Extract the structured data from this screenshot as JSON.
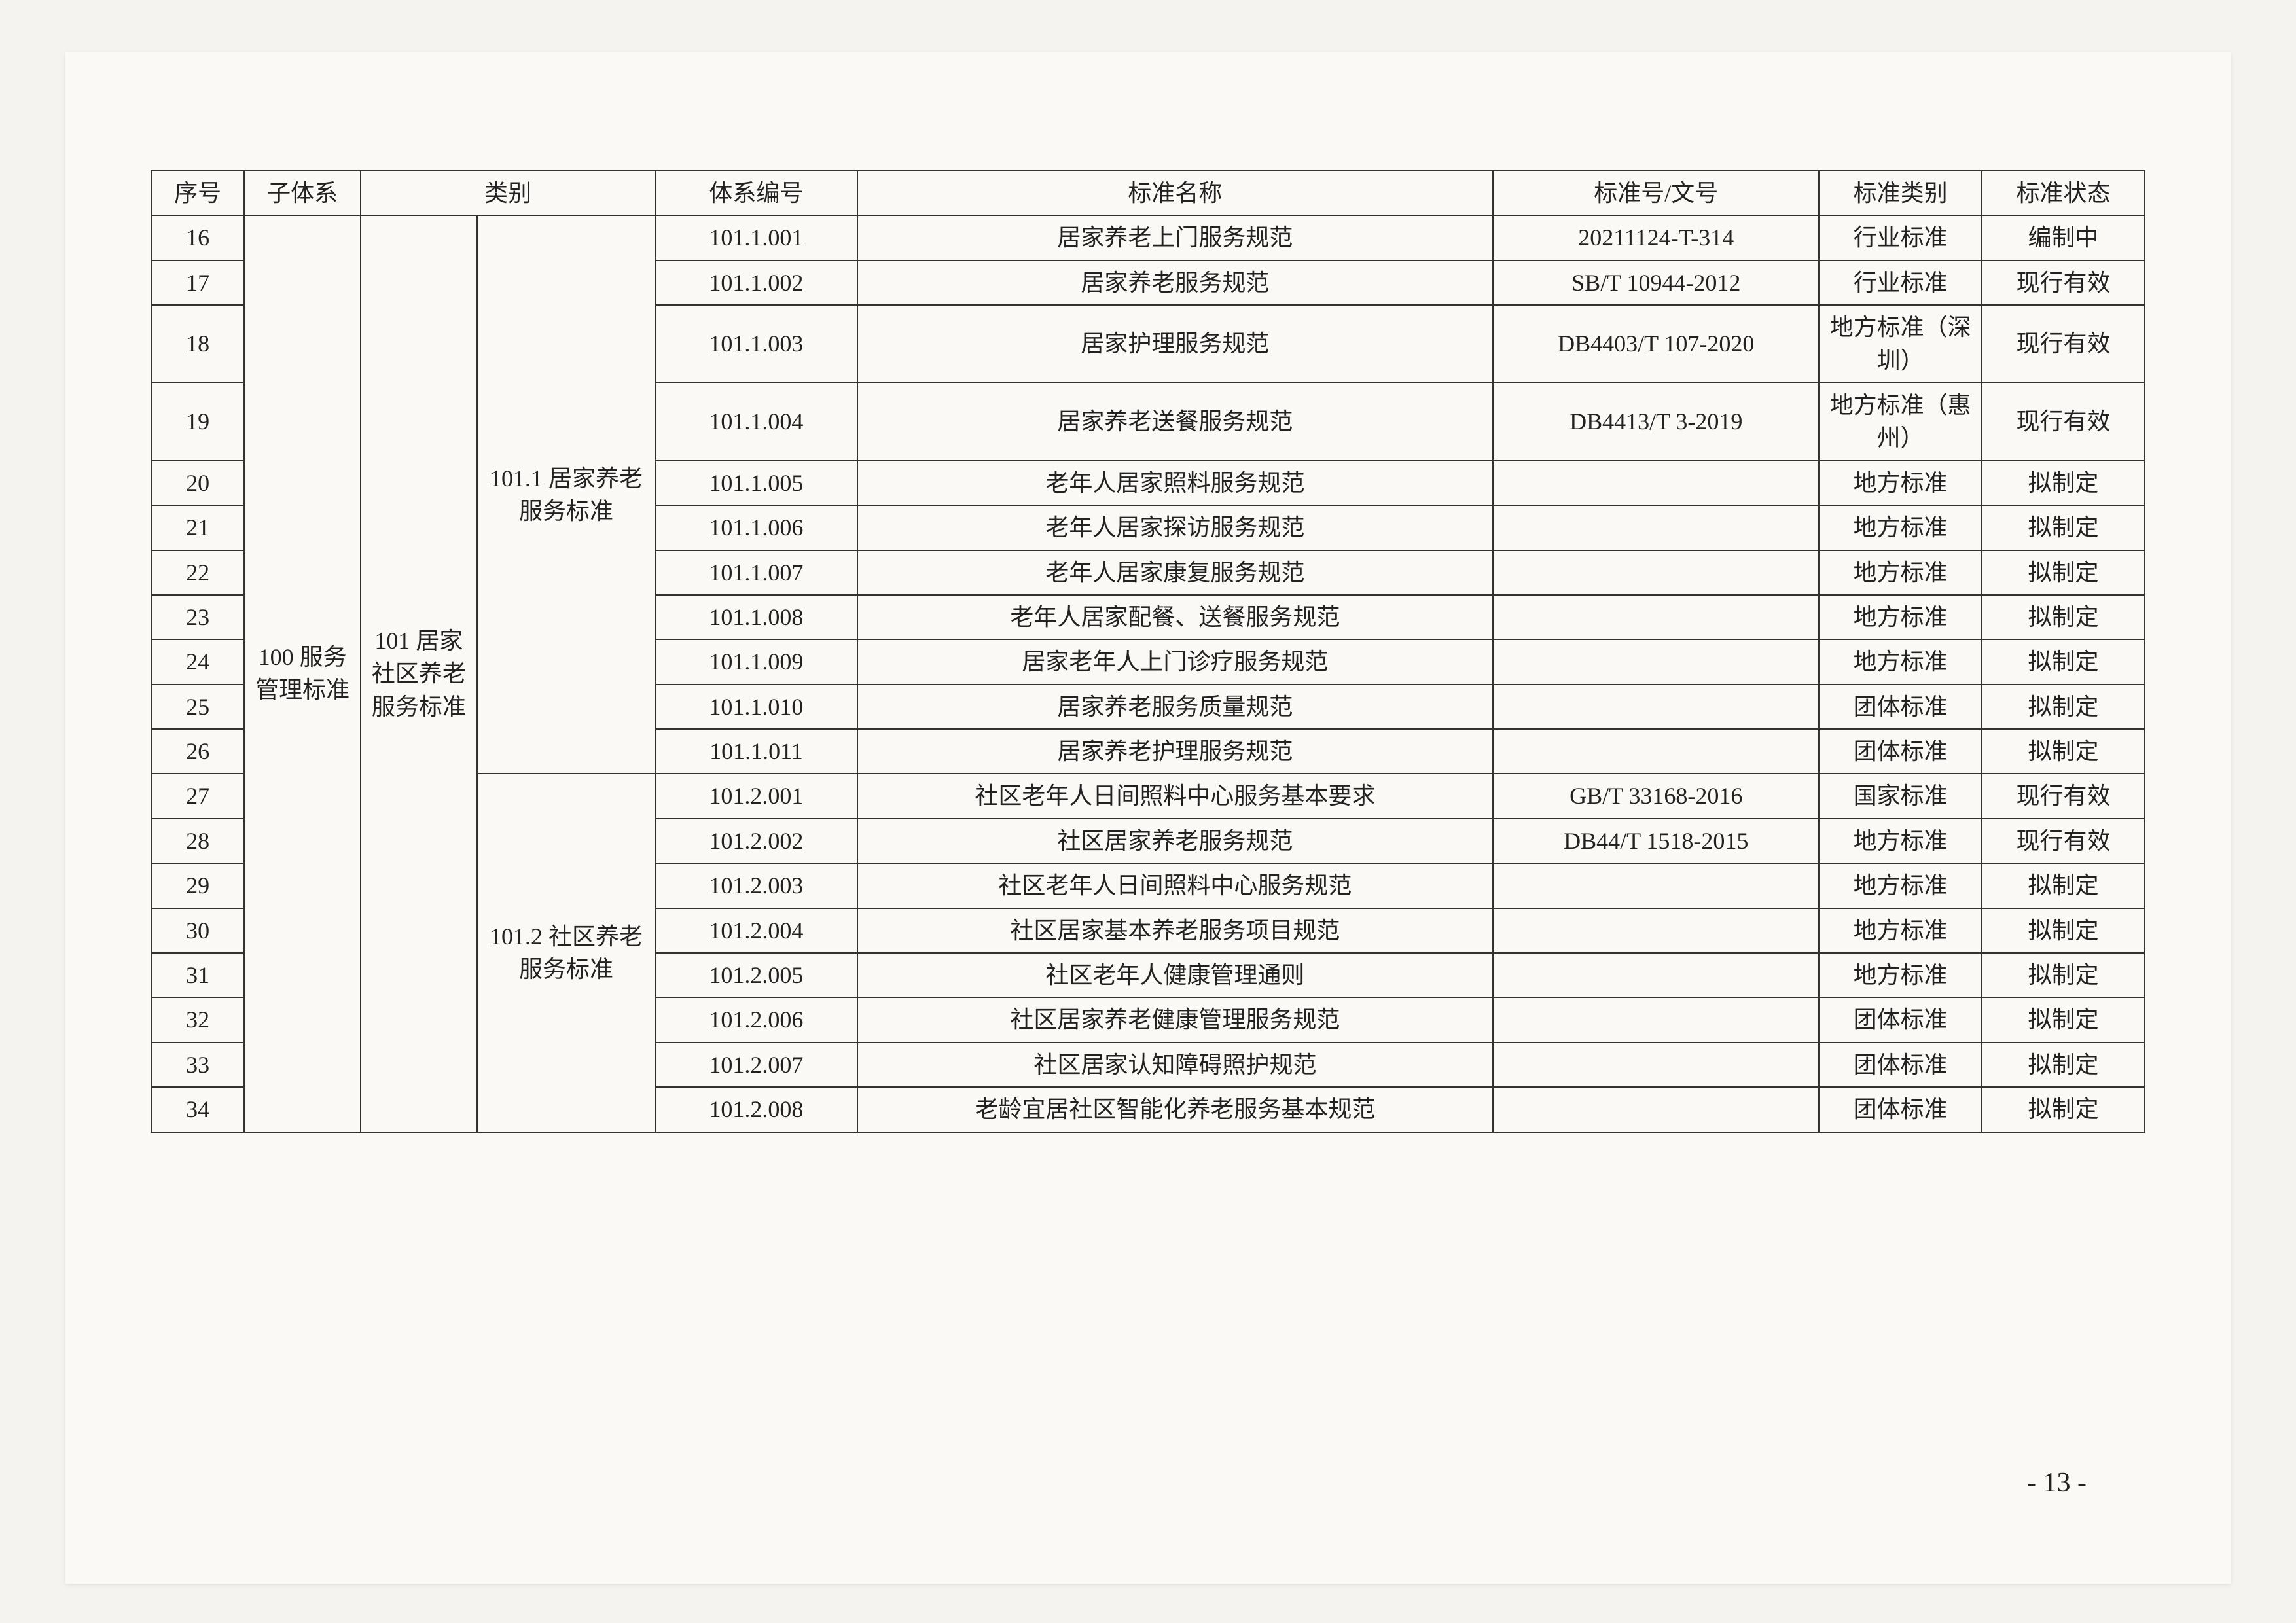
{
  "headers": {
    "seq": "序号",
    "sub": "子体系",
    "cat": "类别",
    "code": "体系编号",
    "name": "标准名称",
    "std": "标准号/文号",
    "type": "标准类别",
    "state": "标准状态"
  },
  "sub_system": "100 服务管理标准",
  "cat1": "101 居家社区养老服务标准",
  "cat2a": "101.1 居家养老服务标准",
  "cat2b": "101.2 社区养老服务标准",
  "rows": [
    {
      "seq": "16",
      "code": "101.1.001",
      "name": "居家养老上门服务规范",
      "std": "20211124-T-314",
      "type": "行业标准",
      "state": "编制中"
    },
    {
      "seq": "17",
      "code": "101.1.002",
      "name": "居家养老服务规范",
      "std": "SB/T 10944-2012",
      "type": "行业标准",
      "state": "现行有效"
    },
    {
      "seq": "18",
      "code": "101.1.003",
      "name": "居家护理服务规范",
      "std": "DB4403/T 107-2020",
      "type": "地方标准（深圳）",
      "state": "现行有效"
    },
    {
      "seq": "19",
      "code": "101.1.004",
      "name": "居家养老送餐服务规范",
      "std": "DB4413/T 3-2019",
      "type": "地方标准（惠州）",
      "state": "现行有效"
    },
    {
      "seq": "20",
      "code": "101.1.005",
      "name": "老年人居家照料服务规范",
      "std": "",
      "type": "地方标准",
      "state": "拟制定"
    },
    {
      "seq": "21",
      "code": "101.1.006",
      "name": "老年人居家探访服务规范",
      "std": "",
      "type": "地方标准",
      "state": "拟制定"
    },
    {
      "seq": "22",
      "code": "101.1.007",
      "name": "老年人居家康复服务规范",
      "std": "",
      "type": "地方标准",
      "state": "拟制定"
    },
    {
      "seq": "23",
      "code": "101.1.008",
      "name": "老年人居家配餐、送餐服务规范",
      "std": "",
      "type": "地方标准",
      "state": "拟制定"
    },
    {
      "seq": "24",
      "code": "101.1.009",
      "name": "居家老年人上门诊疗服务规范",
      "std": "",
      "type": "地方标准",
      "state": "拟制定"
    },
    {
      "seq": "25",
      "code": "101.1.010",
      "name": "居家养老服务质量规范",
      "std": "",
      "type": "团体标准",
      "state": "拟制定"
    },
    {
      "seq": "26",
      "code": "101.1.011",
      "name": "居家养老护理服务规范",
      "std": "",
      "type": "团体标准",
      "state": "拟制定"
    },
    {
      "seq": "27",
      "code": "101.2.001",
      "name": "社区老年人日间照料中心服务基本要求",
      "std": "GB/T 33168-2016",
      "type": "国家标准",
      "state": "现行有效"
    },
    {
      "seq": "28",
      "code": "101.2.002",
      "name": "社区居家养老服务规范",
      "std": "DB44/T 1518-2015",
      "type": "地方标准",
      "state": "现行有效"
    },
    {
      "seq": "29",
      "code": "101.2.003",
      "name": "社区老年人日间照料中心服务规范",
      "std": "",
      "type": "地方标准",
      "state": "拟制定"
    },
    {
      "seq": "30",
      "code": "101.2.004",
      "name": "社区居家基本养老服务项目规范",
      "std": "",
      "type": "地方标准",
      "state": "拟制定"
    },
    {
      "seq": "31",
      "code": "101.2.005",
      "name": "社区老年人健康管理通则",
      "std": "",
      "type": "地方标准",
      "state": "拟制定"
    },
    {
      "seq": "32",
      "code": "101.2.006",
      "name": "社区居家养老健康管理服务规范",
      "std": "",
      "type": "团体标准",
      "state": "拟制定"
    },
    {
      "seq": "33",
      "code": "101.2.007",
      "name": "社区居家认知障碍照护规范",
      "std": "",
      "type": "团体标准",
      "state": "拟制定"
    },
    {
      "seq": "34",
      "code": "101.2.008",
      "name": "老龄宜居社区智能化养老服务基本规范",
      "std": "",
      "type": "团体标准",
      "state": "拟制定"
    }
  ],
  "page_number": "- 13 -"
}
